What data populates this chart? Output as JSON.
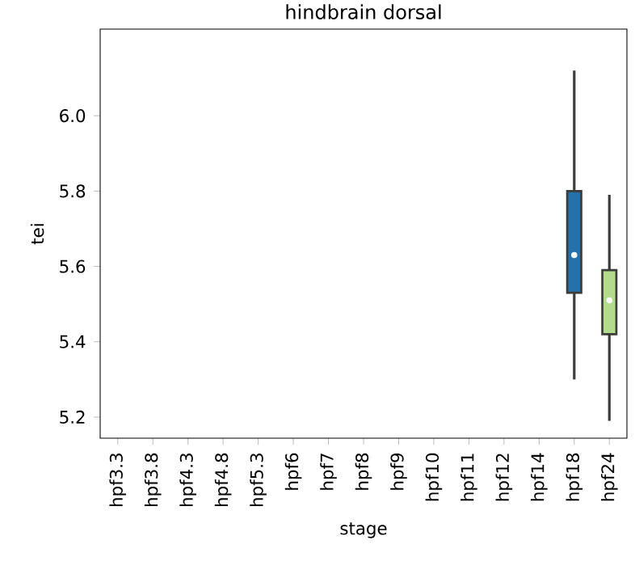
{
  "chart_data": {
    "type": "box",
    "title": "hindbrain dorsal",
    "xlabel": "stage",
    "ylabel": "tei",
    "categories": [
      "hpf3.3",
      "hpf3.8",
      "hpf4.3",
      "hpf4.8",
      "hpf5.3",
      "hpf6",
      "hpf7",
      "hpf8",
      "hpf9",
      "hpf10",
      "hpf11",
      "hpf12",
      "hpf14",
      "hpf18",
      "hpf24"
    ],
    "boxes": [
      null,
      null,
      null,
      null,
      null,
      null,
      null,
      null,
      null,
      null,
      null,
      null,
      null,
      {
        "low": 5.3,
        "q1": 5.53,
        "median": 5.63,
        "q3": 5.8,
        "high": 6.12
      },
      {
        "low": 5.19,
        "q1": 5.42,
        "median": 5.51,
        "q3": 5.59,
        "high": 5.79
      }
    ],
    "colors": [
      null,
      null,
      null,
      null,
      null,
      null,
      null,
      null,
      null,
      null,
      null,
      null,
      null,
      "#2771ab",
      "#b3db8c"
    ],
    "ylim": [
      5.144,
      6.23
    ],
    "yticks": [
      5.2,
      5.4,
      5.6,
      5.8,
      {
        "value": 6.0,
        "label": "6.0"
      }
    ]
  }
}
